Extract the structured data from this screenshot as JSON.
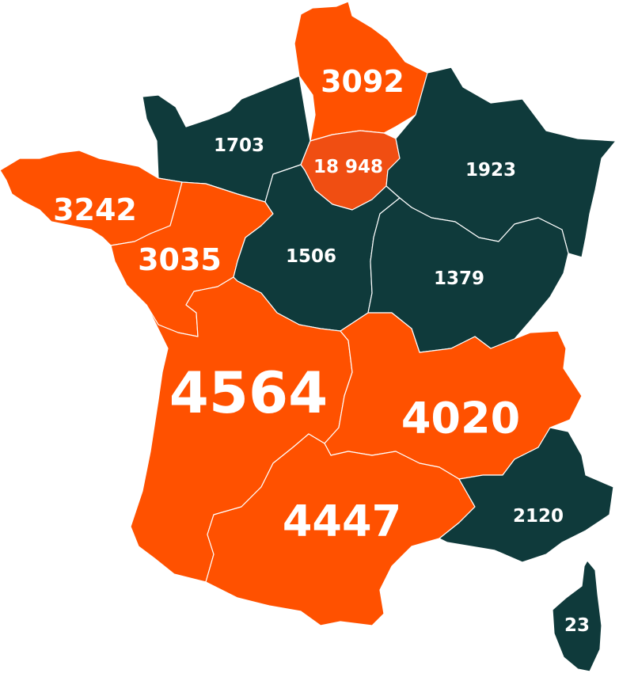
{
  "colors": {
    "high": "#ff5100",
    "highlight": "#f04e12",
    "low": "#0f3a3b",
    "border": "#ffffff"
  },
  "regions": [
    {
      "key": "hauts_de_france",
      "value": "3092",
      "level": "high"
    },
    {
      "key": "normandie",
      "value": "1703",
      "level": "low"
    },
    {
      "key": "ile_de_france",
      "value": "18 948",
      "level": "highlight"
    },
    {
      "key": "grand_est",
      "value": "1923",
      "level": "low"
    },
    {
      "key": "bretagne",
      "value": "3242",
      "level": "high"
    },
    {
      "key": "pays_de_la_loire",
      "value": "3035",
      "level": "high"
    },
    {
      "key": "centre_val_de_loire",
      "value": "1506",
      "level": "low"
    },
    {
      "key": "bourgogne_franche_comte",
      "value": "1379",
      "level": "low"
    },
    {
      "key": "nouvelle_aquitaine",
      "value": "4564",
      "level": "high"
    },
    {
      "key": "auvergne_rhone_alpes",
      "value": "4020",
      "level": "high"
    },
    {
      "key": "occitanie",
      "value": "4447",
      "level": "high"
    },
    {
      "key": "paca",
      "value": "2120",
      "level": "low"
    },
    {
      "key": "corse",
      "value": "23",
      "level": "low"
    }
  ]
}
